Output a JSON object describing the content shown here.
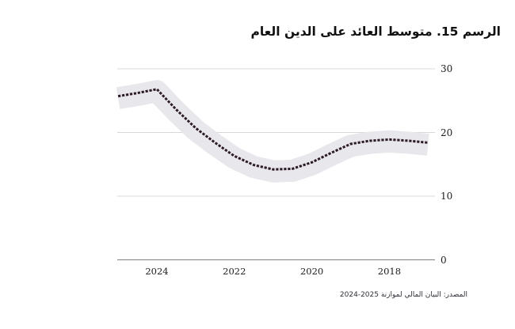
{
  "title": "الرسم 15. متوسط العائد على الدين العام",
  "source": "المصدر: البيان المالي لموازنة 2025-2024",
  "chart_data": {
    "type": "line",
    "title": "الرسم 15. متوسط العائد على الدين العام",
    "x": [
      2025,
      2024.5,
      2024,
      2023.5,
      2023,
      2022.5,
      2022,
      2021.5,
      2021,
      2020.5,
      2020,
      2019.5,
      2019,
      2018.5,
      2018,
      2017.5,
      2017
    ],
    "series": [
      {
        "name": "متوسط العائد على الدين العام",
        "values": [
          25.7,
          26.2,
          26.8,
          23.6,
          20.7,
          18.4,
          16.3,
          14.9,
          14.2,
          14.3,
          15.3,
          16.8,
          18.2,
          18.7,
          18.9,
          18.7,
          18.4
        ]
      }
    ],
    "x_ticks": [
      2024,
      2022,
      2020,
      2018
    ],
    "x_tick_labels": [
      "2024",
      "2022",
      "2020",
      "2018"
    ],
    "y_ticks": [
      30,
      20,
      10,
      0
    ],
    "y_tick_labels": [
      "30",
      "20",
      "10",
      "0"
    ],
    "ylim": [
      0,
      30
    ],
    "x_axis_reversed": true,
    "grid": "horizontal",
    "line_style": "dotted",
    "band": {
      "present": true
    },
    "colors": {
      "line": "#2d1c26",
      "band": "#e8e7eb",
      "grid": "#d8d8db",
      "axis": "#8f8f94",
      "text": "#1c1c1c"
    }
  }
}
